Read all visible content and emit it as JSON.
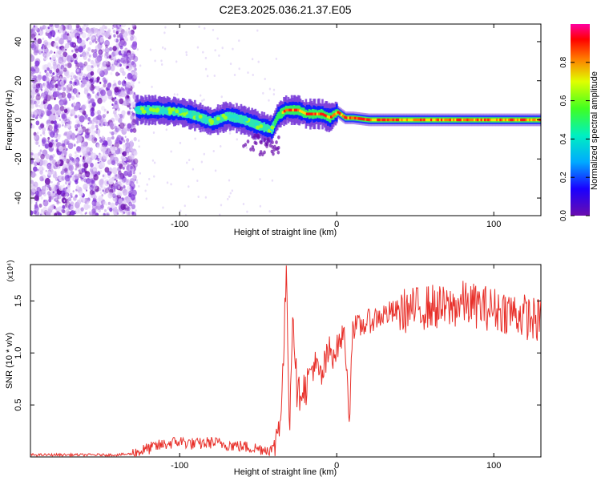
{
  "title": "C2E3.2025.036.21.37.E05",
  "chart_data": [
    {
      "type": "heatmap",
      "xlabel": "Height of straight line (km)",
      "ylabel": "Frequency (Hz)",
      "xlim": [
        -195,
        130
      ],
      "ylim": [
        -49,
        49
      ],
      "xticks": [
        -100,
        0,
        100
      ],
      "yticks": [
        -40,
        -20,
        0,
        20,
        40
      ],
      "colorbar": {
        "label": "Normalized spectral amplitude",
        "range": [
          0,
          1
        ],
        "ticks": [
          "0.0",
          "0.2",
          "0.4",
          "0.6",
          "0.8"
        ]
      },
      "trace": {
        "description_points": [
          [
            -128,
            5
          ],
          [
            -115,
            5
          ],
          [
            -100,
            4
          ],
          [
            -90,
            2
          ],
          [
            -80,
            -1
          ],
          [
            -70,
            2
          ],
          [
            -60,
            0
          ],
          [
            -50,
            -3
          ],
          [
            -42,
            -5
          ],
          [
            -38,
            2
          ],
          [
            -33,
            5
          ],
          [
            -25,
            5
          ],
          [
            -20,
            3
          ],
          [
            -10,
            3
          ],
          [
            -5,
            1
          ],
          [
            0,
            4
          ],
          [
            5,
            1
          ],
          [
            10,
            1
          ],
          [
            20,
            0
          ],
          [
            50,
            0
          ],
          [
            100,
            0
          ],
          [
            130,
            0
          ]
        ],
        "noise_region": [
          -195,
          -128
        ]
      },
      "colormap": [
        "#6a0dad",
        "#0000ff",
        "#00c8ff",
        "#00ff60",
        "#f0ff00",
        "#ff8c00",
        "#ff0000",
        "#ff00b4"
      ]
    },
    {
      "type": "line",
      "xlabel": "Height of straight line (km)",
      "ylabel": "SNR (10 * v/v)",
      "y_multiplier": "(x10⁴)",
      "xlim": [
        -195,
        130
      ],
      "ylim": [
        0,
        1.85
      ],
      "xticks": [
        -100,
        0,
        100
      ],
      "yticks": [
        "0.5",
        "1.0",
        "1.5"
      ],
      "color": "#e8302a",
      "series": [
        {
          "x": [
            -195,
            -140,
            -130,
            -120,
            -110,
            -100,
            -90,
            -80,
            -70,
            -60,
            -50,
            -40,
            -35,
            -32,
            -30,
            -28,
            -25,
            -22,
            -20,
            -15,
            -10,
            -5,
            0,
            5,
            8,
            10,
            15,
            20,
            30,
            40,
            50,
            60,
            70,
            80,
            90,
            100,
            110,
            120,
            130
          ],
          "values": [
            0.02,
            0.02,
            0.03,
            0.08,
            0.12,
            0.15,
            0.12,
            0.14,
            0.12,
            0.1,
            0.08,
            0.07,
            0.5,
            1.8,
            0.3,
            1.45,
            0.55,
            0.7,
            0.65,
            0.9,
            0.75,
            1.0,
            1.05,
            1.2,
            0.35,
            1.25,
            1.25,
            1.3,
            1.37,
            1.4,
            1.42,
            1.45,
            1.42,
            1.48,
            1.45,
            1.42,
            1.4,
            1.35,
            1.3
          ]
        }
      ]
    }
  ]
}
